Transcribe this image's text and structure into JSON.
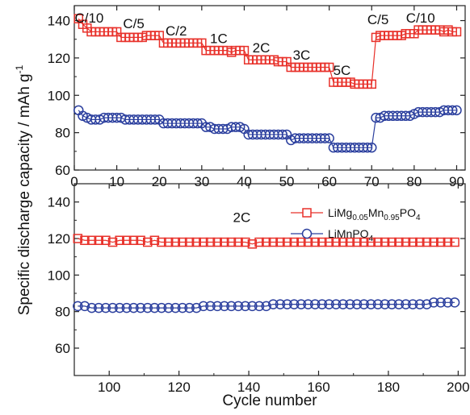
{
  "chart_data": [
    {
      "type": "scatter",
      "panel": "top",
      "xlim": [
        0,
        92
      ],
      "ylim": [
        60,
        148
      ],
      "xticks": [
        0,
        10,
        20,
        30,
        40,
        50,
        60,
        70,
        80,
        90
      ],
      "yticks": [
        60,
        80,
        100,
        120,
        140
      ],
      "grid": false,
      "series": [
        {
          "marker": "square",
          "color": "#e8312a",
          "x": [
            1,
            2,
            3,
            4,
            5,
            6,
            7,
            8,
            9,
            10,
            11,
            12,
            13,
            14,
            15,
            16,
            17,
            18,
            19,
            20,
            21,
            22,
            23,
            24,
            25,
            26,
            27,
            28,
            29,
            30,
            31,
            32,
            33,
            34,
            35,
            36,
            37,
            38,
            39,
            40,
            41,
            42,
            43,
            44,
            45,
            46,
            47,
            48,
            49,
            50,
            51,
            52,
            53,
            54,
            55,
            56,
            57,
            58,
            59,
            60,
            61,
            62,
            63,
            64,
            65,
            66,
            67,
            68,
            69,
            70,
            71,
            72,
            73,
            74,
            75,
            76,
            77,
            78,
            79,
            80,
            81,
            82,
            83,
            84,
            85,
            86,
            87,
            88,
            89,
            90
          ],
          "values": [
            141,
            138,
            136,
            134,
            134,
            134,
            134,
            134,
            134,
            134,
            131,
            131,
            131,
            131,
            131,
            131,
            132,
            132,
            132,
            132,
            128,
            128,
            128,
            128,
            128,
            128,
            128,
            128,
            128,
            128,
            124,
            124,
            124,
            124,
            124,
            124,
            123,
            124,
            124,
            124,
            119,
            119,
            119,
            119,
            119,
            119,
            119,
            118,
            118,
            118,
            115,
            115,
            115,
            115,
            115,
            115,
            115,
            115,
            115,
            115,
            107,
            107,
            107,
            107,
            107,
            106,
            106,
            106,
            106,
            106,
            131,
            132,
            132,
            132,
            132,
            132,
            132,
            133,
            133,
            133,
            135,
            135,
            135,
            135,
            135,
            135,
            134,
            135,
            134,
            134
          ]
        },
        {
          "marker": "circle",
          "color": "#2b3f9e",
          "x": [
            1,
            2,
            3,
            4,
            5,
            6,
            7,
            8,
            9,
            10,
            11,
            12,
            13,
            14,
            15,
            16,
            17,
            18,
            19,
            20,
            21,
            22,
            23,
            24,
            25,
            26,
            27,
            28,
            29,
            30,
            31,
            32,
            33,
            34,
            35,
            36,
            37,
            38,
            39,
            40,
            41,
            42,
            43,
            44,
            45,
            46,
            47,
            48,
            49,
            50,
            51,
            52,
            53,
            54,
            55,
            56,
            57,
            58,
            59,
            60,
            61,
            62,
            63,
            64,
            65,
            66,
            67,
            68,
            69,
            70,
            71,
            72,
            73,
            74,
            75,
            76,
            77,
            78,
            79,
            80,
            81,
            82,
            83,
            84,
            85,
            86,
            87,
            88,
            89,
            90
          ],
          "values": [
            92,
            89,
            88,
            87,
            87,
            87,
            88,
            88,
            88,
            88,
            88,
            87,
            87,
            87,
            87,
            87,
            87,
            87,
            87,
            87,
            85,
            85,
            85,
            85,
            85,
            85,
            85,
            85,
            85,
            85,
            83,
            83,
            82,
            82,
            82,
            82,
            83,
            83,
            83,
            82,
            79,
            79,
            79,
            79,
            79,
            79,
            79,
            79,
            79,
            79,
            76,
            77,
            77,
            77,
            77,
            77,
            77,
            77,
            77,
            77,
            72,
            72,
            72,
            72,
            72,
            72,
            72,
            72,
            72,
            72,
            88,
            88,
            89,
            89,
            89,
            89,
            89,
            89,
            89,
            90,
            91,
            91,
            91,
            91,
            91,
            91,
            92,
            92,
            92,
            92
          ]
        }
      ],
      "annotations": [
        {
          "text": "C/10",
          "x": 3.5,
          "y": 139
        },
        {
          "text": "C/5",
          "x": 14,
          "y": 136
        },
        {
          "text": "C/2",
          "x": 24,
          "y": 132
        },
        {
          "text": "1C",
          "x": 34,
          "y": 128
        },
        {
          "text": "2C",
          "x": 44,
          "y": 123
        },
        {
          "text": "3C",
          "x": 53.5,
          "y": 119
        },
        {
          "text": "5C",
          "x": 63,
          "y": 111
        },
        {
          "text": "C/5",
          "x": 71.5,
          "y": 138
        },
        {
          "text": "C/10",
          "x": 81.5,
          "y": 139
        }
      ]
    },
    {
      "type": "scatter",
      "panel": "bottom",
      "xlim": [
        90,
        202
      ],
      "ylim": [
        45,
        150
      ],
      "xticks": [
        100,
        120,
        140,
        160,
        180,
        200
      ],
      "yticks": [
        60,
        80,
        100,
        120,
        140
      ],
      "xlabel": "Cycle number",
      "ylabel": "Specific discharge capacity / mAh g",
      "ylabel_superscript": "-1",
      "grid": false,
      "legend_placement": "top-right",
      "annotations": [
        {
          "text": "2C",
          "x": 138,
          "y": 129
        }
      ],
      "series": [
        {
          "name_parts": [
            {
              "text": "LiMg",
              "sub": false
            },
            {
              "text": "0.05",
              "sub": true
            },
            {
              "text": "Mn",
              "sub": false
            },
            {
              "text": "0.95",
              "sub": true
            },
            {
              "text": "PO",
              "sub": false
            },
            {
              "text": "4",
              "sub": true
            }
          ],
          "marker": "square",
          "color": "#e8312a",
          "x_start": 91,
          "x_step": 2,
          "values": [
            120,
            119,
            119,
            119,
            119,
            118,
            119,
            119,
            119,
            119,
            118,
            119,
            118,
            118,
            118,
            118,
            118,
            118,
            118,
            118,
            118,
            118,
            118,
            118,
            118,
            117,
            118,
            118,
            118,
            118,
            118,
            118,
            118,
            118,
            118,
            118,
            118,
            118,
            118,
            118,
            118,
            118,
            118,
            118,
            118,
            118,
            118,
            118,
            118,
            118,
            118,
            118,
            118,
            118,
            118
          ]
        },
        {
          "name_parts": [
            {
              "text": "LiMnPO",
              "sub": false
            },
            {
              "text": "4",
              "sub": true
            }
          ],
          "marker": "circle",
          "color": "#2b3f9e",
          "x_start": 91,
          "x_step": 2,
          "values": [
            83,
            83,
            82,
            82,
            82,
            82,
            82,
            82,
            82,
            82,
            82,
            82,
            82,
            82,
            82,
            82,
            82,
            82,
            83,
            83,
            83,
            83,
            83,
            83,
            83,
            83,
            83,
            83,
            84,
            84,
            84,
            84,
            84,
            84,
            84,
            84,
            84,
            84,
            84,
            84,
            84,
            84,
            84,
            84,
            84,
            84,
            84,
            84,
            84,
            84,
            84,
            85,
            85,
            85,
            85
          ]
        }
      ]
    }
  ]
}
